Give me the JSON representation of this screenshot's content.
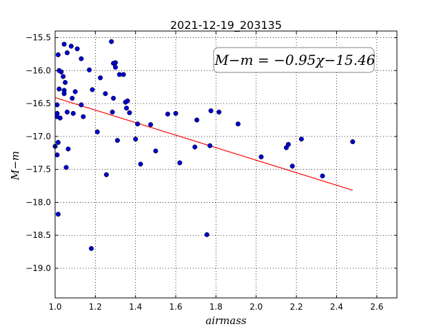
{
  "chart_data": {
    "type": "scatter",
    "title": "2021-12-19_203135",
    "xlabel": "airmass",
    "ylabel": "M−m",
    "xlim": [
      1.0,
      2.7
    ],
    "ylim": [
      -19.45,
      -15.4
    ],
    "xticks": [
      "1.0",
      "1.2",
      "1.4",
      "1.6",
      "1.8",
      "2.0",
      "2.2",
      "2.4",
      "2.6"
    ],
    "yticks": [
      "-15.5",
      "-16.0",
      "-16.5",
      "-17.0",
      "-17.5",
      "-18.0",
      "-18.5",
      "-19.0"
    ],
    "grid": true,
    "annotation": "M−m = −0.95χ−15.46",
    "fit": {
      "slope": -0.95,
      "intercept": -15.46,
      "x_range": [
        1.0,
        2.48
      ],
      "color": "#ff0000"
    },
    "point_color": "#0000cc",
    "points": [
      [
        1.0,
        -17.15
      ],
      [
        1.01,
        -16.52
      ],
      [
        1.01,
        -16.65
      ],
      [
        1.01,
        -16.7
      ],
      [
        1.01,
        -17.28
      ],
      [
        1.015,
        -15.76
      ],
      [
        1.015,
        -17.09
      ],
      [
        1.015,
        -18.18
      ],
      [
        1.02,
        -16.0
      ],
      [
        1.02,
        -16.28
      ],
      [
        1.025,
        -16.72
      ],
      [
        1.03,
        -16.02
      ],
      [
        1.04,
        -16.09
      ],
      [
        1.045,
        -16.3
      ],
      [
        1.045,
        -16.35
      ],
      [
        1.045,
        -15.6
      ],
      [
        1.05,
        -16.18
      ],
      [
        1.055,
        -17.47
      ],
      [
        1.06,
        -15.73
      ],
      [
        1.06,
        -16.63
      ],
      [
        1.065,
        -17.19
      ],
      [
        1.08,
        -15.63
      ],
      [
        1.085,
        -16.42
      ],
      [
        1.09,
        -16.65
      ],
      [
        1.1,
        -16.32
      ],
      [
        1.11,
        -15.67
      ],
      [
        1.13,
        -15.82
      ],
      [
        1.13,
        -16.52
      ],
      [
        1.14,
        -16.7
      ],
      [
        1.17,
        -15.99
      ],
      [
        1.18,
        -18.7
      ],
      [
        1.185,
        -16.29
      ],
      [
        1.21,
        -16.93
      ],
      [
        1.225,
        -16.11
      ],
      [
        1.25,
        -16.35
      ],
      [
        1.255,
        -17.58
      ],
      [
        1.28,
        -15.56
      ],
      [
        1.285,
        -16.63
      ],
      [
        1.29,
        -16.42
      ],
      [
        1.29,
        -15.89
      ],
      [
        1.3,
        -15.95
      ],
      [
        1.3,
        -15.88
      ],
      [
        1.31,
        -17.06
      ],
      [
        1.32,
        -16.06
      ],
      [
        1.34,
        -16.06
      ],
      [
        1.35,
        -16.48
      ],
      [
        1.355,
        -16.57
      ],
      [
        1.36,
        -16.46
      ],
      [
        1.37,
        -16.64
      ],
      [
        1.4,
        -17.04
      ],
      [
        1.41,
        -16.81
      ],
      [
        1.425,
        -17.42
      ],
      [
        1.475,
        -16.82
      ],
      [
        1.5,
        -17.22
      ],
      [
        1.56,
        -16.66
      ],
      [
        1.6,
        -16.65
      ],
      [
        1.62,
        -17.4
      ],
      [
        1.695,
        -17.16
      ],
      [
        1.705,
        -16.75
      ],
      [
        1.755,
        -18.49
      ],
      [
        1.77,
        -17.14
      ],
      [
        1.775,
        -16.61
      ],
      [
        1.815,
        -16.63
      ],
      [
        1.91,
        -16.81
      ],
      [
        2.025,
        -17.31
      ],
      [
        2.15,
        -17.17
      ],
      [
        2.16,
        -17.12
      ],
      [
        2.18,
        -17.45
      ],
      [
        2.225,
        -17.04
      ],
      [
        2.33,
        -17.6
      ],
      [
        2.48,
        -17.08
      ]
    ]
  }
}
